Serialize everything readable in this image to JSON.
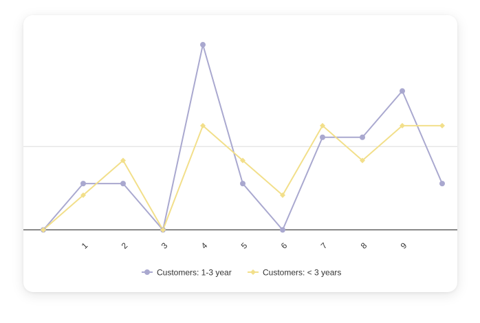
{
  "chart_data": {
    "type": "line",
    "x": [
      "",
      "1",
      "2",
      "3",
      "4",
      "5",
      "6",
      "7",
      "8",
      "9",
      ""
    ],
    "series": [
      {
        "name": "Customers: 1-3 year",
        "color": "#a9a8cf",
        "marker": "circle",
        "values": [
          0,
          4,
          4,
          0,
          16,
          4,
          0,
          8,
          8,
          12,
          4
        ]
      },
      {
        "name": "Customers: < 3 years",
        "color": "#f2df8a",
        "marker": "diamond",
        "values": [
          0,
          3,
          6,
          0,
          9,
          6,
          3,
          9,
          6,
          9,
          9
        ]
      }
    ],
    "ylim": [
      0,
      17.1
    ],
    "gridline_at": 7.2,
    "legend_position": "bottom",
    "title": "",
    "xlabel": "",
    "ylabel": ""
  }
}
